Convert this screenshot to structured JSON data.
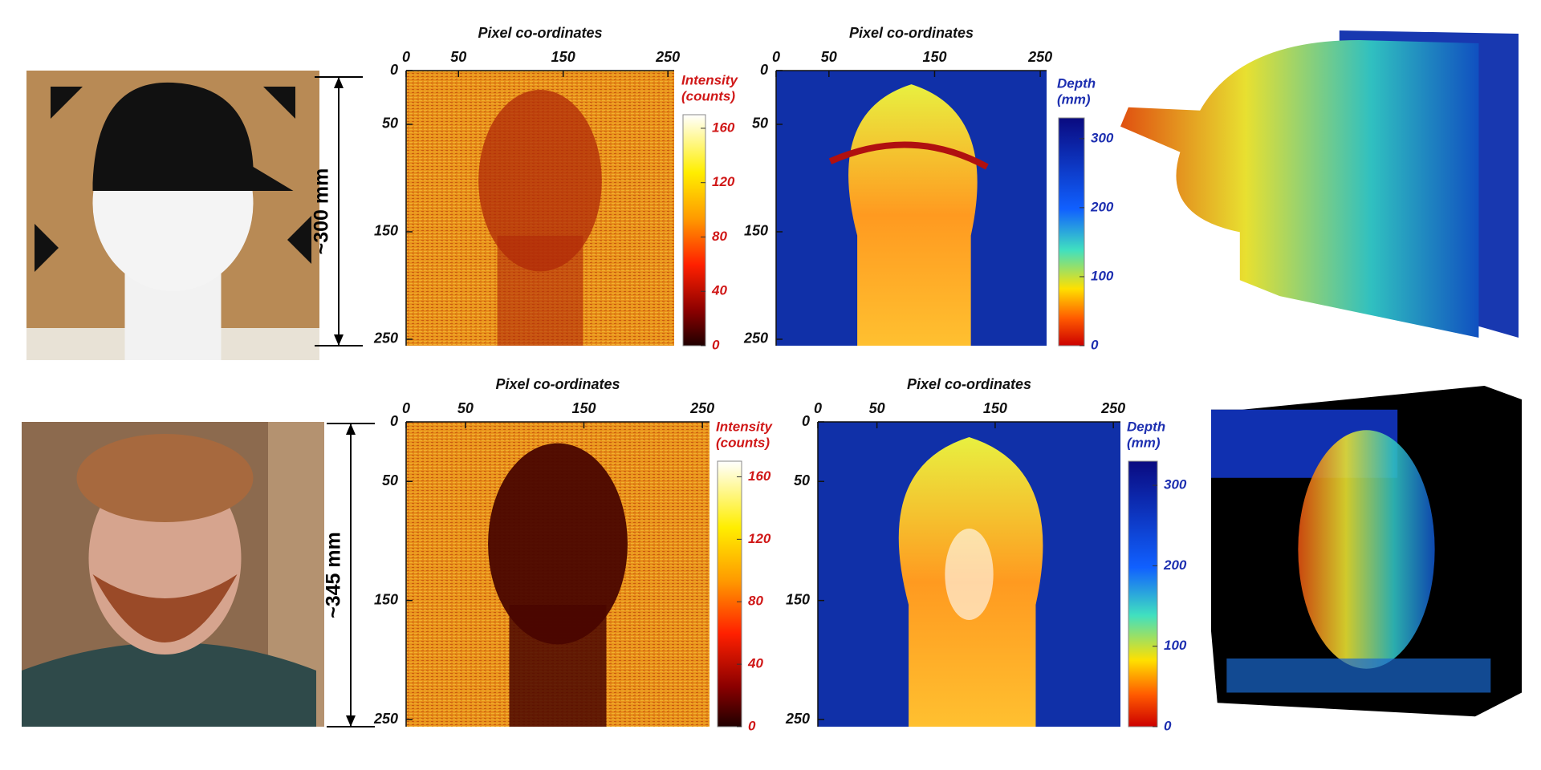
{
  "rows": [
    {
      "scale_label": "~300 mm",
      "intensity": {
        "axis_title": "Pixel co-ordinates",
        "xlim": [
          0,
          256
        ],
        "ylim": [
          0,
          256
        ],
        "xticks": [
          0,
          50,
          150,
          250
        ],
        "yticks": [
          0,
          50,
          150,
          250
        ],
        "colorbar": {
          "label": [
            "Intensity",
            "(counts)"
          ],
          "lim": [
            0,
            170
          ],
          "ticks": [
            0,
            40,
            80,
            120,
            160
          ]
        }
      },
      "depth": {
        "axis_title": "Pixel co-ordinates",
        "xlim": [
          0,
          256
        ],
        "ylim": [
          0,
          256
        ],
        "xticks": [
          0,
          50,
          150,
          250
        ],
        "yticks": [
          0,
          50,
          150,
          250
        ],
        "colorbar": {
          "label": [
            "Depth",
            "(mm)"
          ],
          "lim": [
            0,
            330
          ],
          "ticks": [
            0,
            100,
            200,
            300
          ]
        }
      }
    },
    {
      "scale_label": "~345 mm",
      "intensity": {
        "axis_title": "Pixel co-ordinates",
        "xlim": [
          0,
          256
        ],
        "ylim": [
          0,
          256
        ],
        "xticks": [
          0,
          50,
          150,
          250
        ],
        "yticks": [
          0,
          50,
          150,
          250
        ],
        "colorbar": {
          "label": [
            "Intensity",
            "(counts)"
          ],
          "lim": [
            0,
            170
          ],
          "ticks": [
            0,
            40,
            80,
            120,
            160
          ]
        }
      },
      "depth": {
        "axis_title": "Pixel co-ordinates",
        "xlim": [
          0,
          256
        ],
        "ylim": [
          0,
          256
        ],
        "xticks": [
          0,
          50,
          150,
          250
        ],
        "yticks": [
          0,
          50,
          150,
          250
        ],
        "colorbar": {
          "label": [
            "Depth",
            "(mm)"
          ],
          "lim": [
            0,
            330
          ],
          "ticks": [
            0,
            100,
            200,
            300
          ]
        }
      }
    }
  ]
}
